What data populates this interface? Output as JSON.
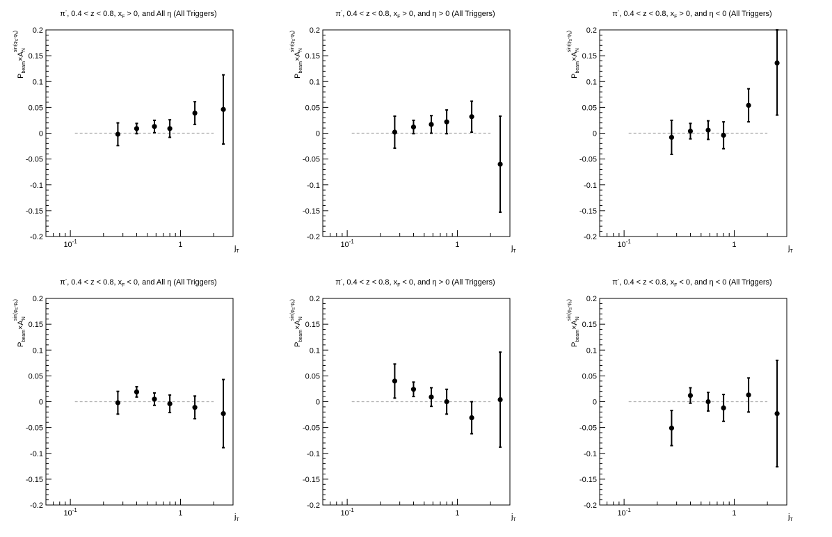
{
  "chart_data": [
    {
      "type": "scatter",
      "title_main": "π",
      "title_sup": "-",
      "title_mid": ", 0.4 < z < 0.8, x",
      "title_sub": "F",
      "title_end": " > 0, and All η (All Triggers)",
      "ylabel": {
        "p": "P",
        "p_sub": "beam",
        "times": "×A",
        "a_sub": "N",
        "sup": "sin(φ",
        "sup_s": "S",
        "sup_mid": "-φ",
        "sup_h": "h",
        "sup_end": ")"
      },
      "xlabel_main": "j",
      "xlabel_sub": "T",
      "xscale": "log",
      "xlim": [
        0.06,
        3.0
      ],
      "ylim": [
        -0.2,
        0.2
      ],
      "yticks": [
        "0.2",
        "0.15",
        "0.1",
        "0.05",
        "0",
        "-0.05",
        "-0.1",
        "-0.15",
        "-0.2"
      ],
      "xticks": [
        {
          "base": "10",
          "exp": "-1"
        },
        {
          "base": "1",
          "exp": ""
        }
      ],
      "points": [
        {
          "x": 0.27,
          "y": -0.002,
          "err": 0.022
        },
        {
          "x": 0.4,
          "y": 0.009,
          "err": 0.01
        },
        {
          "x": 0.58,
          "y": 0.013,
          "err": 0.012
        },
        {
          "x": 0.8,
          "y": 0.009,
          "err": 0.017
        },
        {
          "x": 1.35,
          "y": 0.039,
          "err": 0.022
        },
        {
          "x": 2.45,
          "y": 0.046,
          "err": 0.067
        }
      ],
      "zero_line": [
        0.11,
        2.0
      ]
    },
    {
      "type": "scatter",
      "title_main": "π",
      "title_sup": "-",
      "title_mid": ", 0.4 < z < 0.8, x",
      "title_sub": "F",
      "title_end": " > 0, and η > 0 (All Triggers)",
      "ylabel": {
        "p": "P",
        "p_sub": "beam",
        "times": "×A",
        "a_sub": "N",
        "sup": "sin(φ",
        "sup_s": "S",
        "sup_mid": "-φ",
        "sup_h": "h",
        "sup_end": ")"
      },
      "xlabel_main": "j",
      "xlabel_sub": "T",
      "xscale": "log",
      "xlim": [
        0.06,
        3.0
      ],
      "ylim": [
        -0.2,
        0.2
      ],
      "yticks": [
        "0.2",
        "0.15",
        "0.1",
        "0.05",
        "0",
        "-0.05",
        "-0.1",
        "-0.15",
        "-0.2"
      ],
      "xticks": [
        {
          "base": "10",
          "exp": "-1"
        },
        {
          "base": "1",
          "exp": ""
        }
      ],
      "points": [
        {
          "x": 0.27,
          "y": 0.002,
          "err": 0.031
        },
        {
          "x": 0.4,
          "y": 0.012,
          "err": 0.013
        },
        {
          "x": 0.58,
          "y": 0.017,
          "err": 0.017
        },
        {
          "x": 0.8,
          "y": 0.022,
          "err": 0.023
        },
        {
          "x": 1.35,
          "y": 0.032,
          "err": 0.03
        },
        {
          "x": 2.45,
          "y": -0.06,
          "err": 0.093
        }
      ],
      "zero_line": [
        0.11,
        2.0
      ]
    },
    {
      "type": "scatter",
      "title_main": "π",
      "title_sup": "-",
      "title_mid": ", 0.4 < z < 0.8, x",
      "title_sub": "F",
      "title_end": " > 0, and η < 0 (All Triggers)",
      "ylabel": {
        "p": "P",
        "p_sub": "beam",
        "times": "×A",
        "a_sub": "N",
        "sup": "sin(φ",
        "sup_s": "S",
        "sup_mid": "-φ",
        "sup_h": "h",
        "sup_end": ")"
      },
      "xlabel_main": "j",
      "xlabel_sub": "T",
      "xscale": "log",
      "xlim": [
        0.06,
        3.0
      ],
      "ylim": [
        -0.2,
        0.2
      ],
      "yticks": [
        "0.2",
        "0.15",
        "0.1",
        "0.05",
        "0",
        "-0.05",
        "-0.1",
        "-0.15",
        "-0.2"
      ],
      "xticks": [
        {
          "base": "10",
          "exp": "-1"
        },
        {
          "base": "1",
          "exp": ""
        }
      ],
      "points": [
        {
          "x": 0.27,
          "y": -0.008,
          "err": 0.033
        },
        {
          "x": 0.4,
          "y": 0.004,
          "err": 0.015
        },
        {
          "x": 0.58,
          "y": 0.006,
          "err": 0.018
        },
        {
          "x": 0.8,
          "y": -0.004,
          "err": 0.026
        },
        {
          "x": 1.35,
          "y": 0.054,
          "err": 0.032
        },
        {
          "x": 2.45,
          "y": 0.136,
          "err": 0.101
        }
      ],
      "zero_line": [
        0.11,
        2.0
      ]
    },
    {
      "type": "scatter",
      "title_main": "π",
      "title_sup": "-",
      "title_mid": ", 0.4 < z < 0.8, x",
      "title_sub": "F",
      "title_end": " < 0, and All η (All Triggers)",
      "ylabel": {
        "p": "P",
        "p_sub": "beam",
        "times": "×A",
        "a_sub": "N",
        "sup": "sin(φ",
        "sup_s": "S",
        "sup_mid": "-φ",
        "sup_h": "h",
        "sup_end": ")"
      },
      "xlabel_main": "j",
      "xlabel_sub": "T",
      "xscale": "log",
      "xlim": [
        0.06,
        3.0
      ],
      "ylim": [
        -0.2,
        0.2
      ],
      "yticks": [
        "0.2",
        "0.15",
        "0.1",
        "0.05",
        "0",
        "-0.05",
        "-0.1",
        "-0.15",
        "-0.2"
      ],
      "xticks": [
        {
          "base": "10",
          "exp": "-1"
        },
        {
          "base": "1",
          "exp": ""
        }
      ],
      "points": [
        {
          "x": 0.27,
          "y": -0.002,
          "err": 0.022
        },
        {
          "x": 0.4,
          "y": 0.019,
          "err": 0.01
        },
        {
          "x": 0.58,
          "y": 0.005,
          "err": 0.012
        },
        {
          "x": 0.8,
          "y": -0.004,
          "err": 0.017
        },
        {
          "x": 1.35,
          "y": -0.011,
          "err": 0.022
        },
        {
          "x": 2.45,
          "y": -0.023,
          "err": 0.066
        }
      ],
      "zero_line": [
        0.11,
        2.0
      ]
    },
    {
      "type": "scatter",
      "title_main": "π",
      "title_sup": "-",
      "title_mid": ", 0.4 < z < 0.8, x",
      "title_sub": "F",
      "title_end": " < 0, and η > 0 (All Triggers)",
      "ylabel": {
        "p": "P",
        "p_sub": "beam",
        "times": "×A",
        "a_sub": "N",
        "sup": "sin(φ",
        "sup_s": "S",
        "sup_mid": "-φ",
        "sup_h": "h",
        "sup_end": ")"
      },
      "xlabel_main": "j",
      "xlabel_sub": "T",
      "xscale": "log",
      "xlim": [
        0.06,
        3.0
      ],
      "ylim": [
        -0.2,
        0.2
      ],
      "yticks": [
        "0.2",
        "0.15",
        "0.1",
        "0.05",
        "0",
        "-0.05",
        "-0.1",
        "-0.15",
        "-0.2"
      ],
      "xticks": [
        {
          "base": "10",
          "exp": "-1"
        },
        {
          "base": "1",
          "exp": ""
        }
      ],
      "points": [
        {
          "x": 0.27,
          "y": 0.04,
          "err": 0.033
        },
        {
          "x": 0.4,
          "y": 0.024,
          "err": 0.014
        },
        {
          "x": 0.58,
          "y": 0.009,
          "err": 0.018
        },
        {
          "x": 0.8,
          "y": 0.0,
          "err": 0.024
        },
        {
          "x": 1.35,
          "y": -0.031,
          "err": 0.031
        },
        {
          "x": 2.45,
          "y": 0.004,
          "err": 0.092
        }
      ],
      "zero_line": [
        0.11,
        2.0
      ]
    },
    {
      "type": "scatter",
      "title_main": "π",
      "title_sup": "-",
      "title_mid": ", 0.4 < z < 0.8, x",
      "title_sub": "F",
      "title_end": " < 0, and η < 0 (All Triggers)",
      "ylabel": {
        "p": "P",
        "p_sub": "beam",
        "times": "×A",
        "a_sub": "N",
        "sup": "sin(φ",
        "sup_s": "S",
        "sup_mid": "-φ",
        "sup_h": "h",
        "sup_end": ")"
      },
      "xlabel_main": "j",
      "xlabel_sub": "T",
      "xscale": "log",
      "xlim": [
        0.06,
        3.0
      ],
      "ylim": [
        -0.2,
        0.2
      ],
      "yticks": [
        "0.2",
        "0.15",
        "0.1",
        "0.05",
        "0",
        "-0.05",
        "-0.1",
        "-0.15",
        "-0.2"
      ],
      "xticks": [
        {
          "base": "10",
          "exp": "-1"
        },
        {
          "base": "1",
          "exp": ""
        }
      ],
      "points": [
        {
          "x": 0.27,
          "y": -0.051,
          "err": 0.034
        },
        {
          "x": 0.4,
          "y": 0.012,
          "err": 0.015
        },
        {
          "x": 0.58,
          "y": 0.0,
          "err": 0.018
        },
        {
          "x": 0.8,
          "y": -0.012,
          "err": 0.026
        },
        {
          "x": 1.35,
          "y": 0.013,
          "err": 0.033
        },
        {
          "x": 2.45,
          "y": -0.023,
          "err": 0.103
        }
      ],
      "zero_line": [
        0.11,
        2.0
      ]
    }
  ]
}
